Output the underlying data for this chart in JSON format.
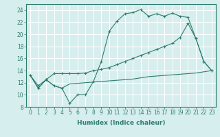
{
  "line1_x": [
    0,
    1,
    2,
    3,
    4,
    5,
    6,
    7,
    8,
    9,
    10,
    11,
    12,
    13,
    14,
    15,
    16,
    17,
    18,
    19,
    20,
    21,
    22,
    23
  ],
  "line1_y": [
    13.2,
    11.1,
    12.5,
    11.5,
    11.1,
    8.6,
    10.0,
    10.0,
    12.2,
    15.5,
    20.5,
    22.2,
    23.4,
    23.6,
    24.1,
    23.0,
    23.4,
    23.0,
    23.5,
    23.0,
    22.8,
    19.3,
    15.5,
    14.0
  ],
  "line2_x": [
    0,
    1,
    2,
    3,
    4,
    5,
    6,
    7,
    8,
    9,
    10,
    11,
    12,
    13,
    14,
    15,
    16,
    17,
    18,
    19,
    20,
    21,
    22,
    23
  ],
  "line2_y": [
    13.2,
    11.5,
    12.5,
    13.5,
    13.5,
    13.5,
    13.5,
    13.6,
    14.0,
    14.2,
    14.5,
    15.0,
    15.5,
    16.0,
    16.5,
    17.0,
    17.5,
    18.0,
    18.5,
    19.5,
    21.8,
    19.3,
    15.5,
    14.0
  ],
  "line3_x": [
    0,
    1,
    2,
    3,
    4,
    5,
    6,
    7,
    8,
    9,
    10,
    11,
    12,
    13,
    14,
    15,
    16,
    17,
    18,
    19,
    20,
    21,
    22,
    23
  ],
  "line3_y": [
    13.2,
    11.1,
    12.5,
    11.5,
    11.1,
    11.8,
    11.9,
    12.0,
    12.1,
    12.2,
    12.3,
    12.4,
    12.5,
    12.6,
    12.8,
    13.0,
    13.1,
    13.2,
    13.3,
    13.4,
    13.5,
    13.6,
    13.8,
    14.0
  ],
  "color": "#2e7d6e",
  "marker": "+",
  "bg_color": "#d6eeee",
  "grid_color": "#ffffff",
  "xlabel": "Humidex (Indice chaleur)",
  "xlim": [
    -0.5,
    23.5
  ],
  "ylim": [
    8,
    25
  ],
  "yticks": [
    8,
    10,
    12,
    14,
    16,
    18,
    20,
    22,
    24
  ],
  "xticks": [
    0,
    1,
    2,
    3,
    4,
    5,
    6,
    7,
    8,
    9,
    10,
    11,
    12,
    13,
    14,
    15,
    16,
    17,
    18,
    19,
    20,
    21,
    22,
    23
  ],
  "xlabel_fontsize": 6.5,
  "tick_fontsize": 5.5
}
